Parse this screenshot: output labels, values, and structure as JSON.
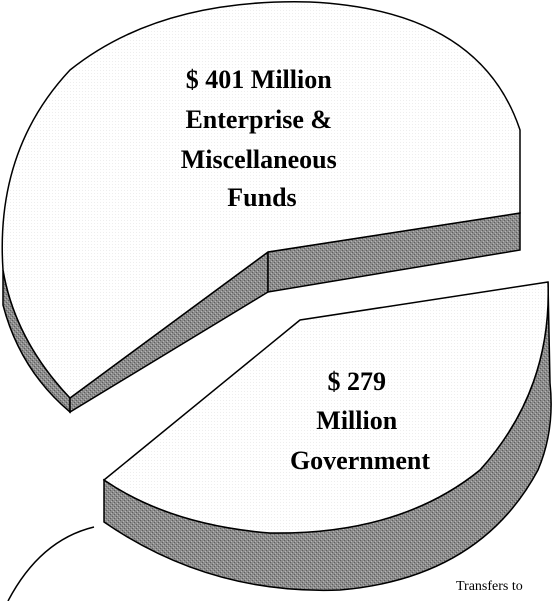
{
  "chart_data": {
    "type": "pie",
    "style": "exploded-3d",
    "slices": [
      {
        "label_lines": [
          "$ 401 Million",
          "Enterprise &",
          "Miscellaneous",
          "Funds"
        ],
        "value": 401,
        "unit": "Million"
      },
      {
        "label_lines": [
          "$ 279",
          "Million",
          "Government"
        ],
        "value": 279,
        "unit": "Million"
      }
    ],
    "annotation": "Transfers to"
  }
}
